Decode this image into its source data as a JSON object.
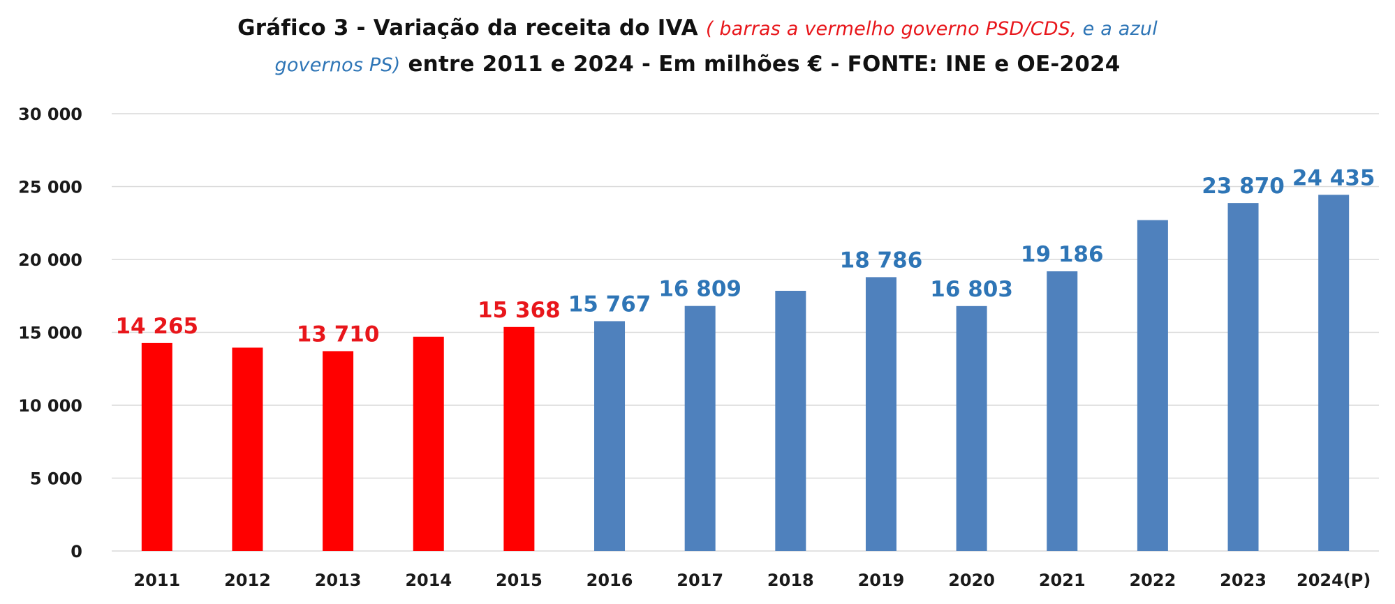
{
  "chart_data": {
    "type": "bar",
    "title": {
      "line1_main": "Gráfico 3  - Variação da receita do IVA ",
      "line1_red": "( barras a vermelho governo PSD/CDS, ",
      "line1_blue": "e a azul",
      "line2_blue": "governos PS)",
      "line2_main": " entre 2011 e 2024 - Em milhões € - FONTE: INE e OE-2024"
    },
    "xlabel": "",
    "ylabel": "",
    "categories": [
      "2011",
      "2012",
      "2013",
      "2014",
      "2015",
      "2016",
      "2017",
      "2018",
      "2019",
      "2020",
      "2021",
      "2022",
      "2023",
      "2024(P)"
    ],
    "values": [
      14265,
      13950,
      13710,
      14700,
      15368,
      15767,
      16809,
      17850,
      18786,
      16803,
      19186,
      22700,
      23870,
      24435
    ],
    "data_labels": [
      "14 265",
      "",
      "13 710",
      "",
      "15 368",
      "15 767",
      "16 809",
      "",
      "18 786",
      "16 803",
      "19 186",
      "",
      "23 870",
      "24 435"
    ],
    "bar_groups": [
      "PSD/CDS",
      "PSD/CDS",
      "PSD/CDS",
      "PSD/CDS",
      "PSD/CDS",
      "PS",
      "PS",
      "PS",
      "PS",
      "PS",
      "PS",
      "PS",
      "PS",
      "PS"
    ],
    "colors": {
      "PSD/CDS": "#ff0000",
      "PS": "#4f81bd",
      "label_PSD/CDS": "#e8161b",
      "label_PS": "#2e75b6",
      "grid": "#d9d9d9",
      "tick_text": "#1a1a1a"
    },
    "ylim": [
      0,
      30000
    ],
    "yticks": [
      0,
      5000,
      10000,
      15000,
      20000,
      25000,
      30000
    ],
    "ytick_labels": [
      "0",
      "5 000",
      "10 000",
      "15 000",
      "20 000",
      "25 000",
      "30 000"
    ],
    "grid": true,
    "legend": "none"
  }
}
